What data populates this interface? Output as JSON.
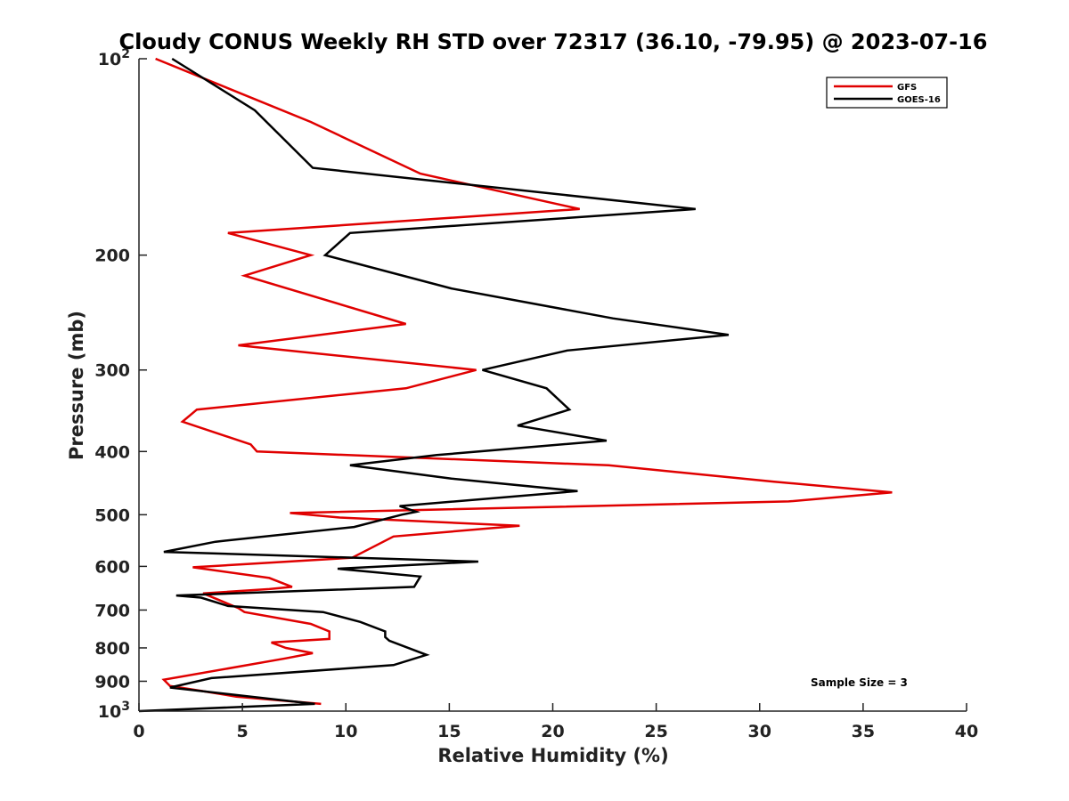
{
  "chart_data": {
    "type": "line",
    "title": "Cloudy CONUS Weekly RH STD over 72317 (36.10, -79.95) @ 2023-07-16",
    "xlabel": "Relative Humidity (%)",
    "ylabel": "Pressure (mb)",
    "xlim": [
      0,
      40
    ],
    "ylim": [
      100,
      1000
    ],
    "y_scale": "log",
    "y_reversed": true,
    "x_ticks": [
      "0",
      "5",
      "10",
      "15",
      "20",
      "25",
      "30",
      "35",
      "40"
    ],
    "y_ticks": [
      {
        "value": 100,
        "label": "10",
        "sup": "2"
      },
      {
        "value": 200,
        "label": "200",
        "sup": ""
      },
      {
        "value": 300,
        "label": "300",
        "sup": ""
      },
      {
        "value": 400,
        "label": "400",
        "sup": ""
      },
      {
        "value": 500,
        "label": "500",
        "sup": ""
      },
      {
        "value": 600,
        "label": "600",
        "sup": ""
      },
      {
        "value": 700,
        "label": "700",
        "sup": ""
      },
      {
        "value": 800,
        "label": "800",
        "sup": ""
      },
      {
        "value": 900,
        "label": "900",
        "sup": ""
      },
      {
        "value": 1000,
        "label": "10",
        "sup": "3"
      }
    ],
    "grid": false,
    "legend": "top-right",
    "annotation": "Sample Size = 3",
    "series": [
      {
        "name": "GFS",
        "color": "#e00000",
        "points": [
          [
            0.8,
            100
          ],
          [
            8.3,
            125
          ],
          [
            13.6,
            150
          ],
          [
            21.3,
            170
          ],
          [
            4.3,
            185
          ],
          [
            8.3,
            200
          ],
          [
            5.1,
            215
          ],
          [
            12.9,
            255
          ],
          [
            4.8,
            275
          ],
          [
            16.3,
            300
          ],
          [
            12.9,
            320
          ],
          [
            2.8,
            345
          ],
          [
            2.1,
            360
          ],
          [
            5.4,
            390
          ],
          [
            5.7,
            400
          ],
          [
            22.7,
            420
          ],
          [
            30.7,
            445
          ],
          [
            36.4,
            462
          ],
          [
            31.4,
            477
          ],
          [
            7.3,
            497
          ],
          [
            9.7,
            505
          ],
          [
            18.4,
            520
          ],
          [
            12.3,
            540
          ],
          [
            10.3,
            582
          ],
          [
            2.6,
            602
          ],
          [
            6.3,
            625
          ],
          [
            7.4,
            645
          ],
          [
            6.3,
            650
          ],
          [
            3.1,
            660
          ],
          [
            4.8,
            695
          ],
          [
            5.1,
            705
          ],
          [
            8.3,
            735
          ],
          [
            9.2,
            755
          ],
          [
            9.2,
            775
          ],
          [
            6.4,
            785
          ],
          [
            7.1,
            800
          ],
          [
            8.4,
            815
          ],
          [
            7.1,
            830
          ],
          [
            1.2,
            895
          ],
          [
            1.5,
            915
          ],
          [
            2.9,
            930
          ],
          [
            4.7,
            950
          ],
          [
            8.8,
            975
          ]
        ]
      },
      {
        "name": "GOES-16",
        "color": "#000000",
        "points": [
          [
            1.6,
            100
          ],
          [
            5.6,
            120
          ],
          [
            8.4,
            147
          ],
          [
            26.9,
            170
          ],
          [
            10.2,
            185
          ],
          [
            9.0,
            200
          ],
          [
            15.1,
            225
          ],
          [
            22.9,
            250
          ],
          [
            28.5,
            265
          ],
          [
            20.7,
            280
          ],
          [
            16.6,
            300
          ],
          [
            19.7,
            320
          ],
          [
            20.8,
            345
          ],
          [
            18.3,
            365
          ],
          [
            22.6,
            385
          ],
          [
            14.4,
            405
          ],
          [
            10.2,
            420
          ],
          [
            15.1,
            440
          ],
          [
            21.2,
            460
          ],
          [
            12.6,
            485
          ],
          [
            13.4,
            495
          ],
          [
            12.7,
            500
          ],
          [
            10.4,
            522
          ],
          [
            3.7,
            550
          ],
          [
            1.2,
            570
          ],
          [
            16.4,
            590
          ],
          [
            9.6,
            605
          ],
          [
            13.6,
            622
          ],
          [
            13.3,
            645
          ],
          [
            1.8,
            665
          ],
          [
            3.0,
            670
          ],
          [
            4.3,
            690
          ],
          [
            8.9,
            705
          ],
          [
            10.7,
            730
          ],
          [
            11.9,
            755
          ],
          [
            11.9,
            770
          ],
          [
            12.1,
            780
          ],
          [
            13.9,
            820
          ],
          [
            12.3,
            850
          ],
          [
            3.5,
            890
          ],
          [
            1.5,
            920
          ],
          [
            8.5,
            975
          ],
          [
            0.0,
            1000
          ]
        ]
      }
    ]
  }
}
